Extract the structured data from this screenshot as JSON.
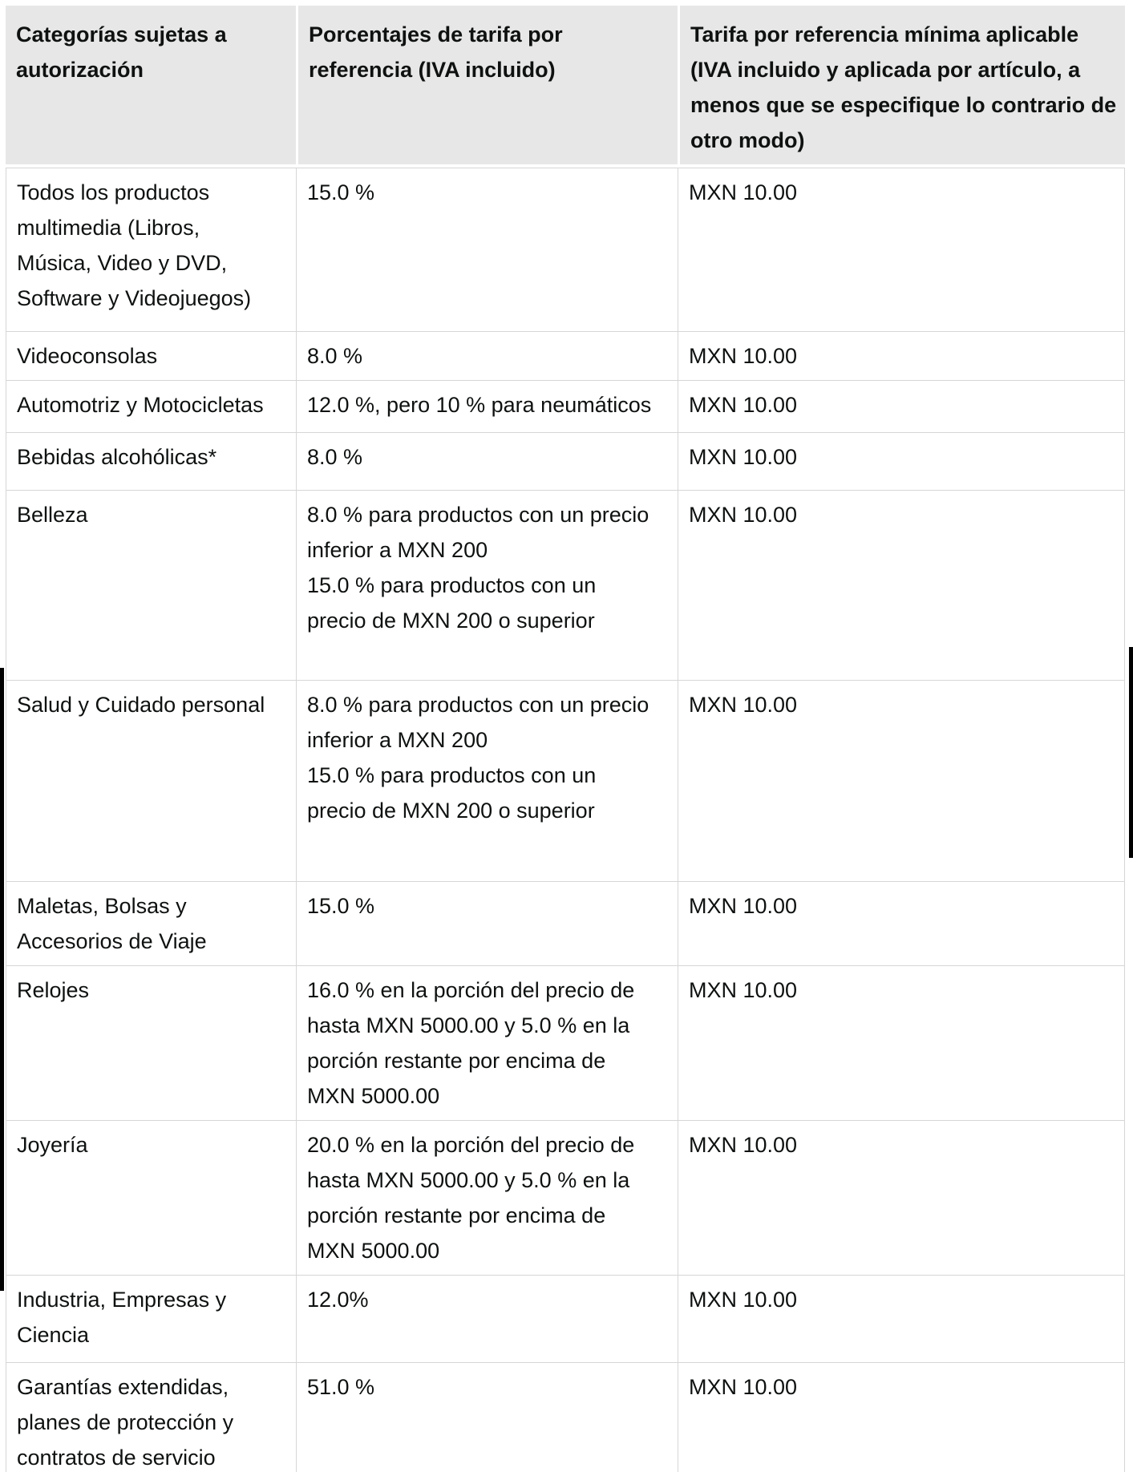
{
  "colors": {
    "header_background": "#e7e7e7",
    "cell_border": "#d6d6d6",
    "text": "#0f1111",
    "edge_artifact": "#000000"
  },
  "table": {
    "columns": [
      {
        "lines": [
          "Categorías sujetas a",
          "autorización"
        ]
      },
      {
        "lines": [
          "Porcentajes de tarifa por",
          "referencia (IVA incluido)"
        ]
      },
      {
        "lines": [
          "Tarifa por referencia mínima aplicable",
          "(IVA incluido y aplicada por artículo, a",
          "menos que se especifique lo contrario de",
          "otro modo)"
        ]
      }
    ],
    "rows": [
      {
        "category_lines": [
          "Todos los productos",
          "multimedia (Libros,",
          "Música, Video y DVD,",
          "Software y Videojuegos)"
        ],
        "fee_lines": [
          "15.0 %"
        ],
        "min_fee": "MXN 10.00"
      },
      {
        "category_lines": [
          "Videoconsolas"
        ],
        "fee_lines": [
          "8.0 %"
        ],
        "min_fee": "MXN 10.00"
      },
      {
        "category_lines": [
          "Automotriz y Motocicletas"
        ],
        "fee_lines": [
          "12.0 %, pero 10 % para neumáticos"
        ],
        "min_fee": "MXN 10.00"
      },
      {
        "category_lines": [
          "Bebidas alcohólicas*"
        ],
        "fee_lines": [
          "8.0 %"
        ],
        "min_fee": "MXN 10.00"
      },
      {
        "category_lines": [
          "Belleza"
        ],
        "fee_lines": [
          "8.0 % para productos con un precio",
          "inferior a MXN 200",
          "15.0 % para productos con un",
          "precio de MXN 200 o superior"
        ],
        "min_fee": "MXN 10.00"
      },
      {
        "category_lines": [
          "Salud y Cuidado personal"
        ],
        "fee_lines": [
          "8.0 % para productos con un precio",
          "inferior a MXN 200",
          "15.0 % para productos con un",
          "precio de MXN 200 o superior"
        ],
        "min_fee": "MXN 10.00"
      },
      {
        "category_lines": [
          "Maletas, Bolsas y",
          "Accesorios de Viaje"
        ],
        "fee_lines": [
          "15.0 %"
        ],
        "min_fee": "MXN 10.00"
      },
      {
        "category_lines": [
          "Relojes"
        ],
        "fee_lines": [
          "16.0 % en la porción del precio de",
          "hasta MXN 5000.00 y 5.0 % en la",
          "porción restante por encima de",
          "MXN 5000.00"
        ],
        "min_fee": "MXN 10.00"
      },
      {
        "category_lines": [
          "Joyería"
        ],
        "fee_lines": [
          "20.0 % en la porción del precio de",
          "hasta MXN 5000.00 y 5.0 % en la",
          "porción restante por encima de",
          "MXN 5000.00"
        ],
        "min_fee": "MXN 10.00"
      },
      {
        "category_lines": [
          "Industria, Empresas y",
          "Ciencia"
        ],
        "fee_lines": [
          "12.0%"
        ],
        "min_fee": "MXN 10.00"
      },
      {
        "category_lines": [
          "Garantías extendidas,",
          "planes de protección y",
          "contratos de servicio"
        ],
        "fee_lines": [
          "51.0 %"
        ],
        "min_fee": "MXN 10.00"
      }
    ]
  }
}
